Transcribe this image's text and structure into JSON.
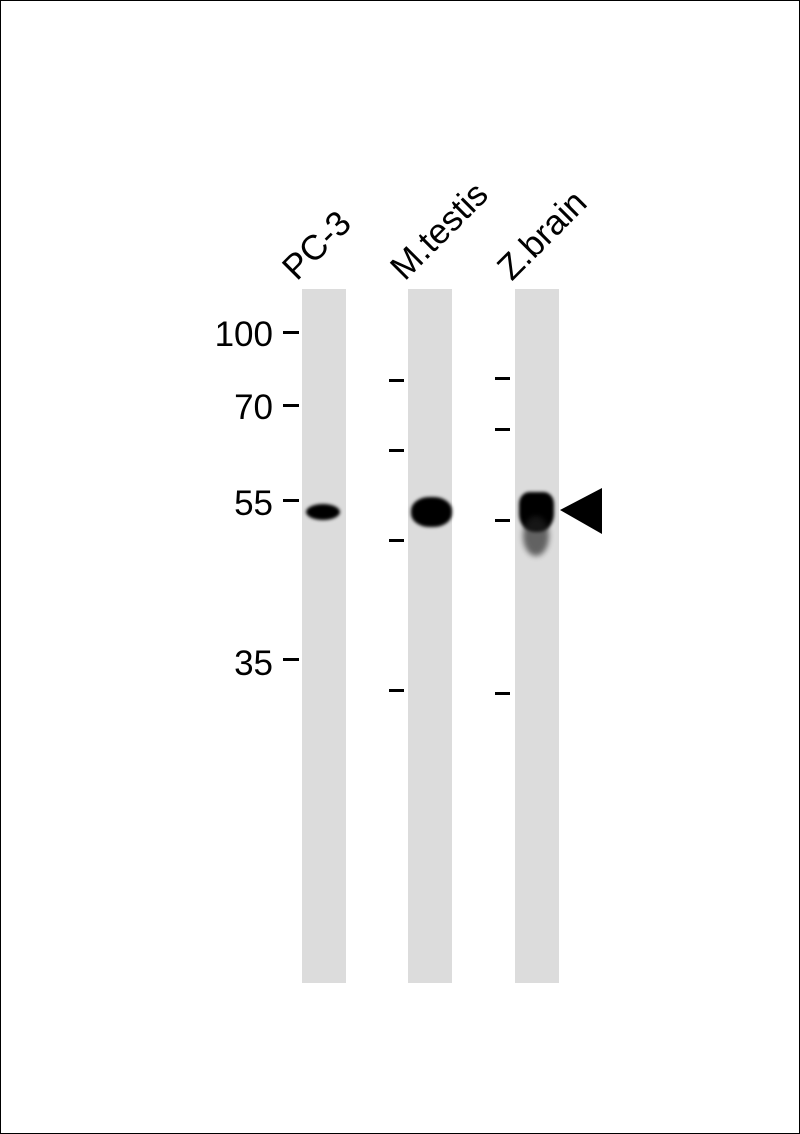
{
  "lanes": [
    {
      "label": "PC-3"
    },
    {
      "label": "M.testis"
    },
    {
      "label": "Z.brain"
    }
  ],
  "markers": [
    {
      "label": "100"
    },
    {
      "label": "70"
    },
    {
      "label": "55"
    },
    {
      "label": "35"
    }
  ],
  "arrow": {
    "icon": "left-pointing-triangle",
    "color": "#000000"
  },
  "colors": {
    "lane": "#dcdcdc",
    "band": "#000000"
  }
}
